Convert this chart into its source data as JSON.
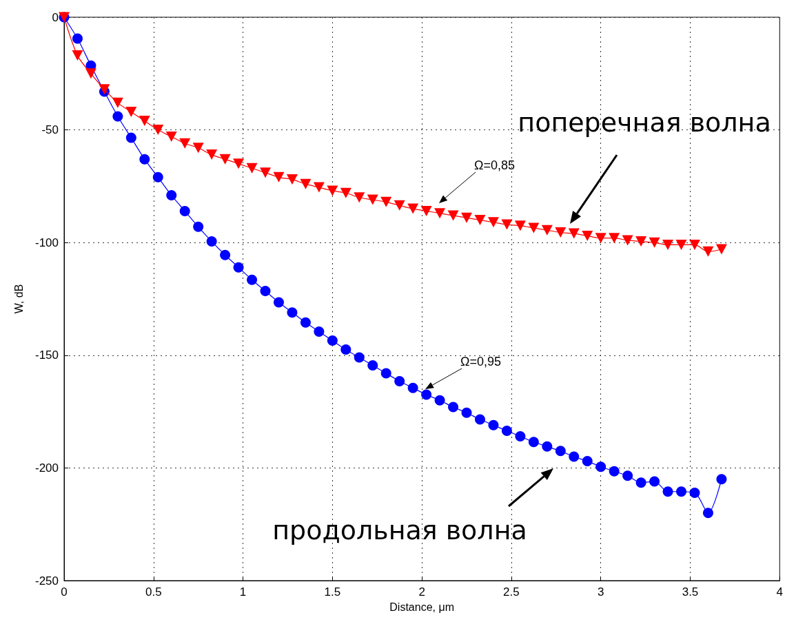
{
  "chart_data": {
    "type": "line",
    "xlabel": "Distance, μm",
    "ylabel": "W, dB",
    "xlim": [
      0,
      4
    ],
    "xticks": [
      0,
      0.5,
      1,
      1.5,
      2,
      2.5,
      3,
      3.5,
      4
    ],
    "ylim": [
      -250,
      0
    ],
    "yticks": [
      -250,
      -200,
      -150,
      -100,
      -50,
      0
    ],
    "grid": true,
    "x": [
      0,
      0.075,
      0.15,
      0.225,
      0.3,
      0.375,
      0.45,
      0.525,
      0.6,
      0.675,
      0.75,
      0.825,
      0.9,
      0.975,
      1.05,
      1.125,
      1.2,
      1.275,
      1.35,
      1.425,
      1.5,
      1.575,
      1.65,
      1.725,
      1.8,
      1.875,
      1.95,
      2.025,
      2.1,
      2.175,
      2.25,
      2.325,
      2.4,
      2.475,
      2.55,
      2.625,
      2.7,
      2.775,
      2.85,
      2.925,
      3,
      3.075,
      3.15,
      3.225,
      3.3,
      3.375,
      3.45,
      3.525,
      3.6,
      3.675
    ],
    "series": [
      {
        "color": "#ff0000",
        "marker": "triangle",
        "values": [
          0,
          -17,
          -25,
          -32,
          -38,
          -42,
          -46,
          -50,
          -53,
          -56,
          -58,
          -61,
          -63,
          -65,
          -67,
          -69,
          -71,
          -72,
          -74,
          -75.5,
          -77,
          -78,
          -80,
          -81,
          -82,
          -83.5,
          -85,
          -86,
          -87,
          -88,
          -89,
          -90,
          -91,
          -92,
          -92.5,
          -93.5,
          -94.5,
          -95.5,
          -96,
          -97,
          -98,
          -98,
          -99,
          -99.5,
          -100,
          -101,
          -101,
          -101,
          -104,
          -103
        ]
      },
      {
        "color": "#0000ff",
        "marker": "circle",
        "values": [
          0,
          -9.5,
          -21.5,
          -33,
          -44,
          -53.5,
          -63,
          -71,
          -79,
          -86,
          -93,
          -99.5,
          -105.5,
          -111,
          -116.5,
          -121.5,
          -126.5,
          -131,
          -135.5,
          -139.5,
          -143.5,
          -147.5,
          -151,
          -154.5,
          -158,
          -161.5,
          -164.5,
          -167.5,
          -170,
          -173,
          -175.5,
          -178.5,
          -181,
          -183.5,
          -186,
          -188.5,
          -190.5,
          -192.5,
          -195,
          -197,
          -199.5,
          -201.5,
          -203.5,
          -206.5,
          -206,
          -210.5,
          -210.5,
          -211,
          -220,
          -205
        ]
      }
    ],
    "annotations": [
      "Ω=0,85",
      "Ω=0,95",
      "поперечная волна",
      "продольная волна"
    ]
  }
}
